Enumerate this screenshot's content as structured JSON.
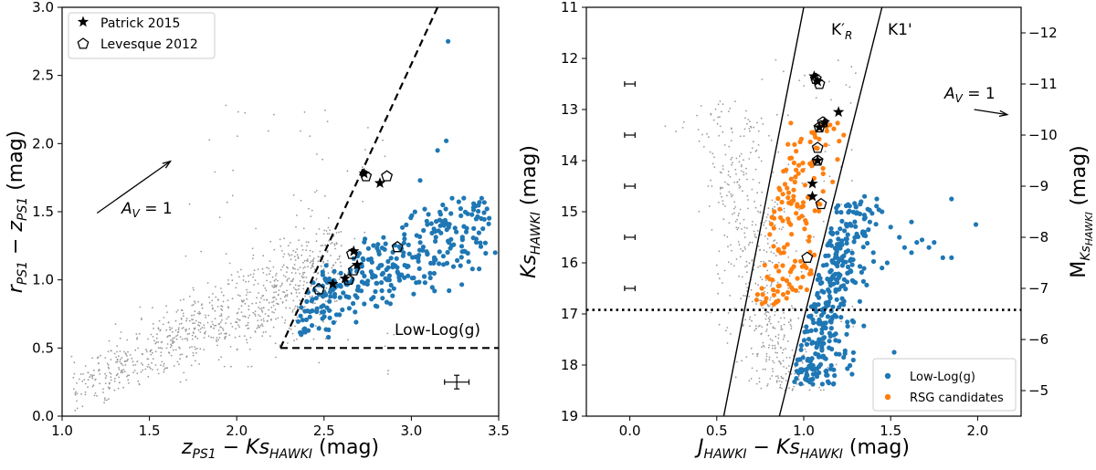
{
  "chart_data": [
    {
      "type": "scatter",
      "xlim": [
        1.0,
        3.5
      ],
      "ylim": [
        0.0,
        3.0
      ],
      "xticks": [
        1.0,
        1.5,
        2.0,
        2.5,
        3.0,
        3.5
      ],
      "yticks": [
        0.0,
        0.5,
        1.0,
        1.5,
        2.0,
        2.5,
        3.0
      ],
      "xtick_labels": [
        "1.0",
        "1.5",
        "2.0",
        "2.5",
        "3.0",
        "3.5"
      ],
      "ytick_labels": [
        "0.0",
        "0.5",
        "1.0",
        "1.5",
        "2.0",
        "2.5",
        "3.0"
      ],
      "xlabel": "z_PS1 − Ks_HAWKI (mag)",
      "ylabel": "r_PS1 − z_PS1 (mag)",
      "grid": false,
      "legend_position": "top-left",
      "legend": [
        {
          "label": "Patrick 2015",
          "marker": "star"
        },
        {
          "label": "Levesque 2012",
          "marker": "pentagon"
        }
      ],
      "annotations": {
        "av_label": "A_V = 1",
        "av_arrow": {
          "x1": 1.2,
          "y1": 1.49,
          "x2": 1.62,
          "y2": 1.87
        },
        "region_label": "Low-Log(g)",
        "region_label_pos": {
          "x": 3.1,
          "y": 0.62
        }
      },
      "selection_lines": [
        {
          "style": "dashed",
          "points": [
            [
              2.25,
              0.5
            ],
            [
              3.15,
              3.0
            ]
          ]
        },
        {
          "style": "dashed",
          "points": [
            [
              2.25,
              0.5
            ],
            [
              3.5,
              0.5
            ]
          ]
        }
      ],
      "errorbar": {
        "x": 3.26,
        "y": 0.25,
        "xerr": 0.07,
        "yerr": 0.05
      },
      "series": [
        {
          "name": "",
          "color": "#9a9a9a",
          "marker": "dot",
          "generator": "field-left"
        },
        {
          "name": "Low-Log(g)",
          "color": "#1f77b4",
          "marker": "circle",
          "generator": "lowlogg-left",
          "extra_points": [
            [
              3.21,
              2.75
            ],
            [
              3.15,
              1.95
            ],
            [
              3.2,
              2.02
            ],
            [
              3.05,
              1.73
            ],
            [
              3.18,
              1.55
            ],
            [
              3.3,
              1.6
            ],
            [
              3.4,
              1.45
            ],
            [
              3.48,
              1.2
            ],
            [
              3.35,
              1.08
            ],
            [
              3.25,
              1.38
            ]
          ]
        },
        {
          "name": "Patrick 2015",
          "color": "#000000",
          "marker": "star",
          "points": [
            [
              2.73,
              1.78
            ],
            [
              2.82,
              1.71
            ],
            [
              2.67,
              1.21
            ],
            [
              2.69,
              1.11
            ],
            [
              2.62,
              1.01
            ],
            [
              2.55,
              0.97
            ]
          ]
        },
        {
          "name": "Levesque 2012",
          "color": "#000000",
          "marker": "pentagon",
          "points": [
            [
              2.74,
              1.76
            ],
            [
              2.86,
              1.76
            ],
            [
              2.66,
              1.19
            ],
            [
              2.92,
              1.24
            ],
            [
              2.67,
              1.07
            ],
            [
              2.64,
              1.0
            ],
            [
              2.47,
              0.93
            ]
          ]
        }
      ]
    },
    {
      "type": "scatter",
      "xlim": [
        -0.25,
        2.25
      ],
      "ylim": [
        19.0,
        11.0
      ],
      "y2lim": [
        -4.5,
        -12.5
      ],
      "xticks": [
        0.0,
        0.5,
        1.0,
        1.5,
        2.0
      ],
      "xtick_labels": [
        "0.0",
        "0.5",
        "1.0",
        "1.5",
        "2.0"
      ],
      "yticks": [
        11,
        12,
        13,
        14,
        15,
        16,
        17,
        18,
        19
      ],
      "ytick_labels": [
        "11",
        "12",
        "13",
        "14",
        "15",
        "16",
        "17",
        "18",
        "19"
      ],
      "y2ticks": [
        -12,
        -11,
        -10,
        -9,
        -8,
        -7,
        -6,
        -5
      ],
      "y2tick_labels": [
        "−12",
        "−11",
        "−10",
        "−9",
        "−8",
        "−7",
        "−6",
        "−5"
      ],
      "xlabel": "J_HAWKI − Ks_HAWKI (mag)",
      "ylabel": "Ks_HAWKI (mag)",
      "y2label": "M_Ks_HAWKI (mag)",
      "grid": false,
      "legend_position": "bottom-right",
      "legend": [
        {
          "label": "Low-Log(g)",
          "color": "#1f77b4"
        },
        {
          "label": "RSG candidates",
          "color": "#ff7f0e"
        }
      ],
      "annotations": {
        "kr_label": "K′_R",
        "k1_label": "K1'",
        "av_label": "A_V = 1",
        "av_arrow": {
          "x1": 1.98,
          "y1": 13.0,
          "x2": 2.17,
          "y2": 13.1
        }
      },
      "lines": [
        {
          "name": "K′_R",
          "style": "solid",
          "points": [
            [
              0.54,
              19.0
            ],
            [
              1.0,
              11.0
            ]
          ]
        },
        {
          "name": "K1'",
          "style": "solid",
          "points": [
            [
              0.86,
              19.0
            ],
            [
              1.45,
              11.0
            ]
          ]
        },
        {
          "name": "limit",
          "style": "dotted",
          "points": [
            [
              -0.25,
              16.92
            ],
            [
              2.25,
              16.92
            ]
          ]
        }
      ],
      "error_bars": [
        {
          "x": 0.0,
          "y": 12.5,
          "xerr": 0.03
        },
        {
          "x": 0.0,
          "y": 13.5,
          "xerr": 0.03
        },
        {
          "x": 0.0,
          "y": 14.5,
          "xerr": 0.03
        },
        {
          "x": 0.0,
          "y": 15.5,
          "xerr": 0.03
        },
        {
          "x": 0.0,
          "y": 16.5,
          "xerr": 0.03
        }
      ],
      "series": [
        {
          "name": "",
          "color": "#9a9a9a",
          "marker": "dot",
          "generator": "field-right"
        },
        {
          "name": "Low-Log(g)",
          "color": "#1f77b4",
          "marker": "circle",
          "generator": "lowlogg-right",
          "extra_points": [
            [
              1.35,
              14.7
            ],
            [
              1.42,
              14.75
            ],
            [
              1.45,
              15.0
            ],
            [
              1.5,
              15.3
            ],
            [
              1.55,
              15.5
            ],
            [
              1.58,
              15.7
            ],
            [
              1.62,
              15.8
            ],
            [
              1.68,
              15.55
            ],
            [
              1.72,
              15.7
            ],
            [
              1.8,
              15.9
            ],
            [
              1.85,
              15.9
            ],
            [
              1.75,
              15.6
            ],
            [
              1.99,
              15.25
            ],
            [
              1.62,
              15.2
            ],
            [
              1.52,
              17.75
            ],
            [
              1.85,
              14.75
            ],
            [
              1.4,
              15.8
            ],
            [
              1.45,
              16.1
            ],
            [
              1.3,
              14.9
            ],
            [
              1.38,
              15.2
            ],
            [
              1.65,
              15.6
            ],
            [
              1.48,
              16.0
            ]
          ]
        },
        {
          "name": "RSG candidates",
          "color": "#ff7f0e",
          "marker": "circle",
          "generator": "rsg-right"
        },
        {
          "name": "Patrick 2015",
          "color": "#000000",
          "marker": "star",
          "points": [
            [
              1.2,
              13.05
            ],
            [
              1.05,
              14.45
            ],
            [
              1.05,
              14.7
            ],
            [
              1.06,
              12.35
            ],
            [
              1.08,
              12.45
            ],
            [
              1.12,
              13.25
            ],
            [
              1.09,
              13.35
            ],
            [
              1.08,
              14.0
            ]
          ]
        },
        {
          "name": "Levesque 2012",
          "color": "#000000",
          "marker": "pentagon",
          "points": [
            [
              1.07,
              12.4
            ],
            [
              1.09,
              12.5
            ],
            [
              1.11,
              13.25
            ],
            [
              1.09,
              13.35
            ],
            [
              1.08,
              13.75
            ],
            [
              1.08,
              14.0
            ],
            [
              1.1,
              14.85
            ],
            [
              1.02,
              15.9
            ]
          ]
        }
      ]
    }
  ]
}
